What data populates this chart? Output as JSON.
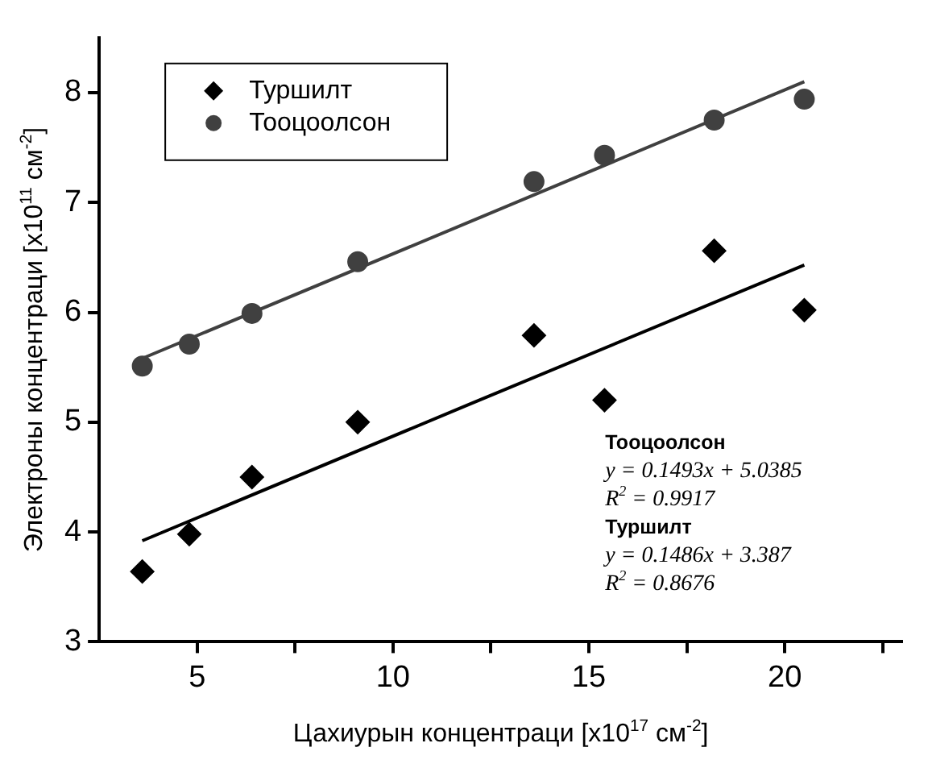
{
  "chart_data": {
    "type": "scatter",
    "xlabel": "Цахиурын концентраци [x10$^{17}$ см$^{-2}$]",
    "ylabel": "Электроны концентраци [x10$^{11}$ см$^{-2}$]",
    "x": [
      3.6,
      4.8,
      6.4,
      9.1,
      13.6,
      15.4,
      18.2,
      20.5
    ],
    "series": [
      {
        "name": "Туршилт",
        "type": "scatter",
        "marker": "diamond",
        "color": "#000000",
        "values": [
          3.64,
          3.98,
          4.5,
          5.0,
          5.79,
          5.2,
          6.56,
          6.02
        ]
      },
      {
        "name": "Тооцоолсон",
        "type": "scatter",
        "marker": "circle",
        "color": "#404040",
        "values": [
          5.51,
          5.71,
          5.99,
          6.46,
          7.19,
          7.43,
          7.75,
          7.94
        ]
      },
      {
        "type": "line",
        "color": "#404040",
        "x": [
          3.6,
          12,
          20.5
        ],
        "values": [
          5.58,
          6.83,
          8.1
        ]
      },
      {
        "type": "line",
        "color": "#000000",
        "x": [
          3.6,
          12,
          20.5
        ],
        "values": [
          3.92,
          5.17,
          6.43
        ]
      }
    ],
    "xlim": [
      2.5,
      23
    ],
    "xticks": [
      5,
      {
        "value": 7.5,
        "label": null
      },
      10,
      {
        "value": 12.5,
        "label": null
      },
      15,
      {
        "value": 17.5,
        "label": null
      },
      20,
      {
        "value": 22.5,
        "label": null
      }
    ],
    "ylim": [
      3,
      8.5
    ],
    "yticks": [
      3,
      4,
      5,
      6,
      7,
      8
    ],
    "legend": "top left",
    "annotations": [
      "Тооцоолсон",
      "y = 0.1493x + 5.0385",
      "R$^{2}$ = 0.9917",
      "Туршилт",
      "y = 0.1486x + 3.387",
      "R$^{2}$ = 0.8676"
    ]
  }
}
